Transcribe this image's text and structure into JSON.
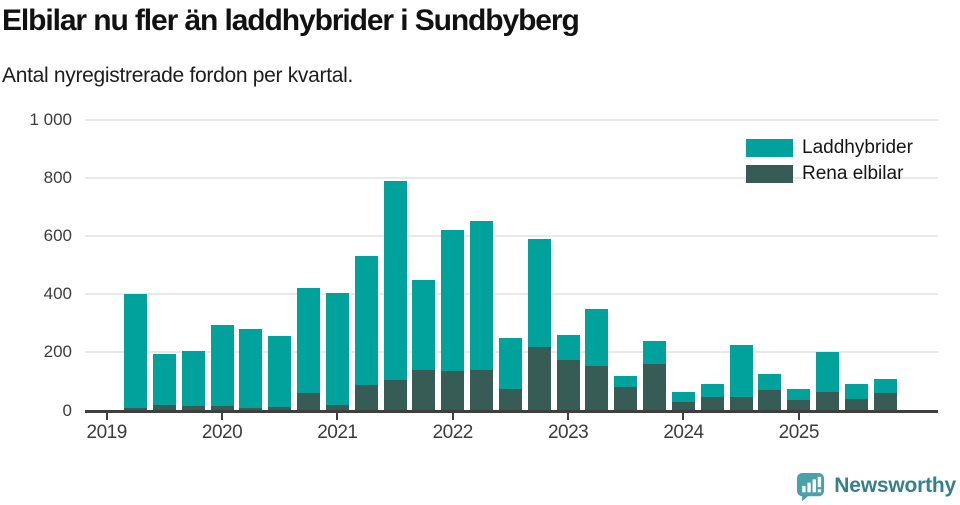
{
  "header": {
    "title": "Elbilar nu fler än laddhybrider i Sundbyberg",
    "subtitle": "Antal nyregistrerade fordon per kvartal."
  },
  "legend": {
    "items": [
      {
        "label": "Laddhybrider",
        "color": "#00a29b"
      },
      {
        "label": "Rena elbilar",
        "color": "#365c55"
      }
    ]
  },
  "footer": {
    "brand": "Newsworthy",
    "brand_color": "#35818a",
    "icon_color": "#4aa1a8"
  },
  "colors": {
    "laddhybrider": "#00a29b",
    "rena_elbilar": "#365c55",
    "gridline": "#e9e9e9",
    "axis": "#3f3f3f",
    "text": "#1d1d1d"
  },
  "chart_data": {
    "type": "bar",
    "stacked": true,
    "title": "Elbilar nu fler än laddhybrider i Sundbyberg",
    "subtitle": "Antal nyregistrerade fordon per kvartal.",
    "xlabel": "",
    "ylabel": "",
    "ylim": [
      0,
      1000
    ],
    "grid": true,
    "legend_position": "top-right",
    "quarters": [
      "2019 Q1",
      "2019 Q2",
      "2019 Q3",
      "2019 Q4",
      "2020 Q1",
      "2020 Q2",
      "2020 Q3",
      "2020 Q4",
      "2021 Q1",
      "2021 Q2",
      "2021 Q3",
      "2021 Q4",
      "2022 Q1",
      "2022 Q2",
      "2022 Q3",
      "2022 Q4",
      "2023 Q1",
      "2023 Q2",
      "2023 Q3",
      "2023 Q4",
      "2024 Q1",
      "2024 Q2",
      "2024 Q3",
      "2024 Q4",
      "2025 Q1",
      "2025 Q2",
      "2025 Q3"
    ],
    "series": [
      {
        "name": "Rena elbilar",
        "color": "#365c55",
        "values": [
          10,
          20,
          15,
          15,
          8,
          12,
          60,
          18,
          88,
          105,
          140,
          135,
          140,
          75,
          218,
          175,
          153,
          80,
          160,
          28,
          48,
          45,
          70,
          35,
          65,
          40,
          60
        ]
      },
      {
        "name": "Laddhybrider",
        "color": "#00a29b",
        "values": [
          390,
          175,
          190,
          280,
          272,
          243,
          360,
          387,
          442,
          685,
          310,
          485,
          510,
          175,
          372,
          85,
          197,
          40,
          80,
          37,
          42,
          180,
          55,
          40,
          135,
          50,
          50
        ]
      }
    ],
    "totals": [
      400,
      195,
      205,
      295,
      280,
      255,
      420,
      405,
      530,
      790,
      450,
      620,
      650,
      250,
      590,
      260,
      350,
      120,
      240,
      65,
      90,
      225,
      125,
      75,
      200,
      90,
      110
    ],
    "y_ticks": [
      {
        "value": 0,
        "label": "0"
      },
      {
        "value": 200,
        "label": "200"
      },
      {
        "value": 400,
        "label": "400"
      },
      {
        "value": 600,
        "label": "600"
      },
      {
        "value": 800,
        "label": "800"
      },
      {
        "value": 1000,
        "label": "1 000"
      }
    ],
    "x_year_labels": [
      "2019",
      "2020",
      "2021",
      "2022",
      "2023",
      "2024",
      "2025"
    ]
  }
}
